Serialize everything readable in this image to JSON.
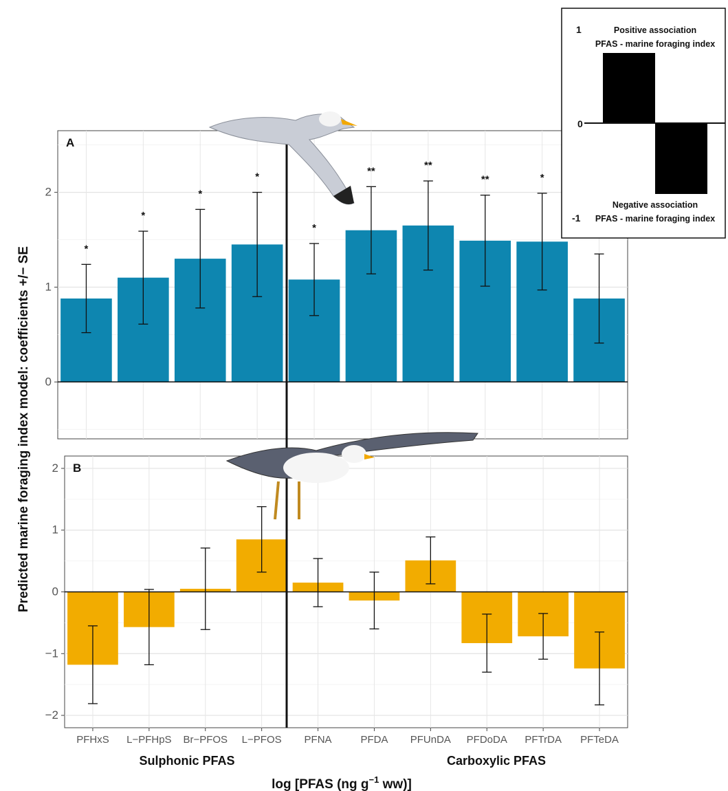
{
  "chart_data": [
    {
      "type": "bar",
      "panel_label": "A",
      "categories": [
        "PFHxS",
        "L−PFHpS",
        "Br−PFOS",
        "L−PFOS",
        "PFNA",
        "PFDA",
        "PFUnDA",
        "PFDoDA",
        "PFTrDA",
        "PFTeDA"
      ],
      "values": [
        0.88,
        1.1,
        1.3,
        1.45,
        1.08,
        1.6,
        1.65,
        1.49,
        1.48,
        0.88
      ],
      "se": [
        0.36,
        0.49,
        0.52,
        0.55,
        0.38,
        0.46,
        0.47,
        0.48,
        0.51,
        0.47
      ],
      "significance": [
        "*",
        "*",
        "*",
        "*",
        "*",
        "**",
        "**",
        "**",
        "*",
        ""
      ],
      "ylim": [
        -0.6,
        2.65
      ],
      "yticks": [
        0,
        1,
        2
      ],
      "color": "#0e86b0",
      "grid": true
    },
    {
      "type": "bar",
      "panel_label": "B",
      "categories": [
        "PFHxS",
        "L−PFHpS",
        "Br−PFOS",
        "L−PFOS",
        "PFNA",
        "PFDA",
        "PFUnDA",
        "PFDoDA",
        "PFTrDA",
        "PFTeDA"
      ],
      "values": [
        -1.18,
        -0.57,
        0.05,
        0.85,
        0.15,
        -0.14,
        0.51,
        -0.83,
        -0.72,
        -1.24
      ],
      "se": [
        0.63,
        0.61,
        0.66,
        0.53,
        0.39,
        0.46,
        0.38,
        0.47,
        0.37,
        0.59
      ],
      "ylim": [
        -2.2,
        2.2
      ],
      "yticks": [
        -2,
        -1,
        0,
        1,
        2
      ],
      "color": "#f2ac00",
      "grid": true
    }
  ],
  "axes": {
    "ylabel": "Predicted marine foraging index model: coefficients +/− SE",
    "xlabel_main": "log [PFAS (ng  g",
    "xlabel_sup": "−1",
    "xlabel_end": " ww)]",
    "group_left": "Sulphonic PFAS",
    "group_right": "Carboxylic PFAS"
  },
  "legend_box": {
    "top_tick": "1",
    "zero_tick": "0",
    "bottom_tick": "-1",
    "pos_line1": "Positive association",
    "pos_line2": "PFAS - marine foraging index",
    "neg_line1": "Negative association",
    "neg_line2": "PFAS - marine foraging index"
  }
}
